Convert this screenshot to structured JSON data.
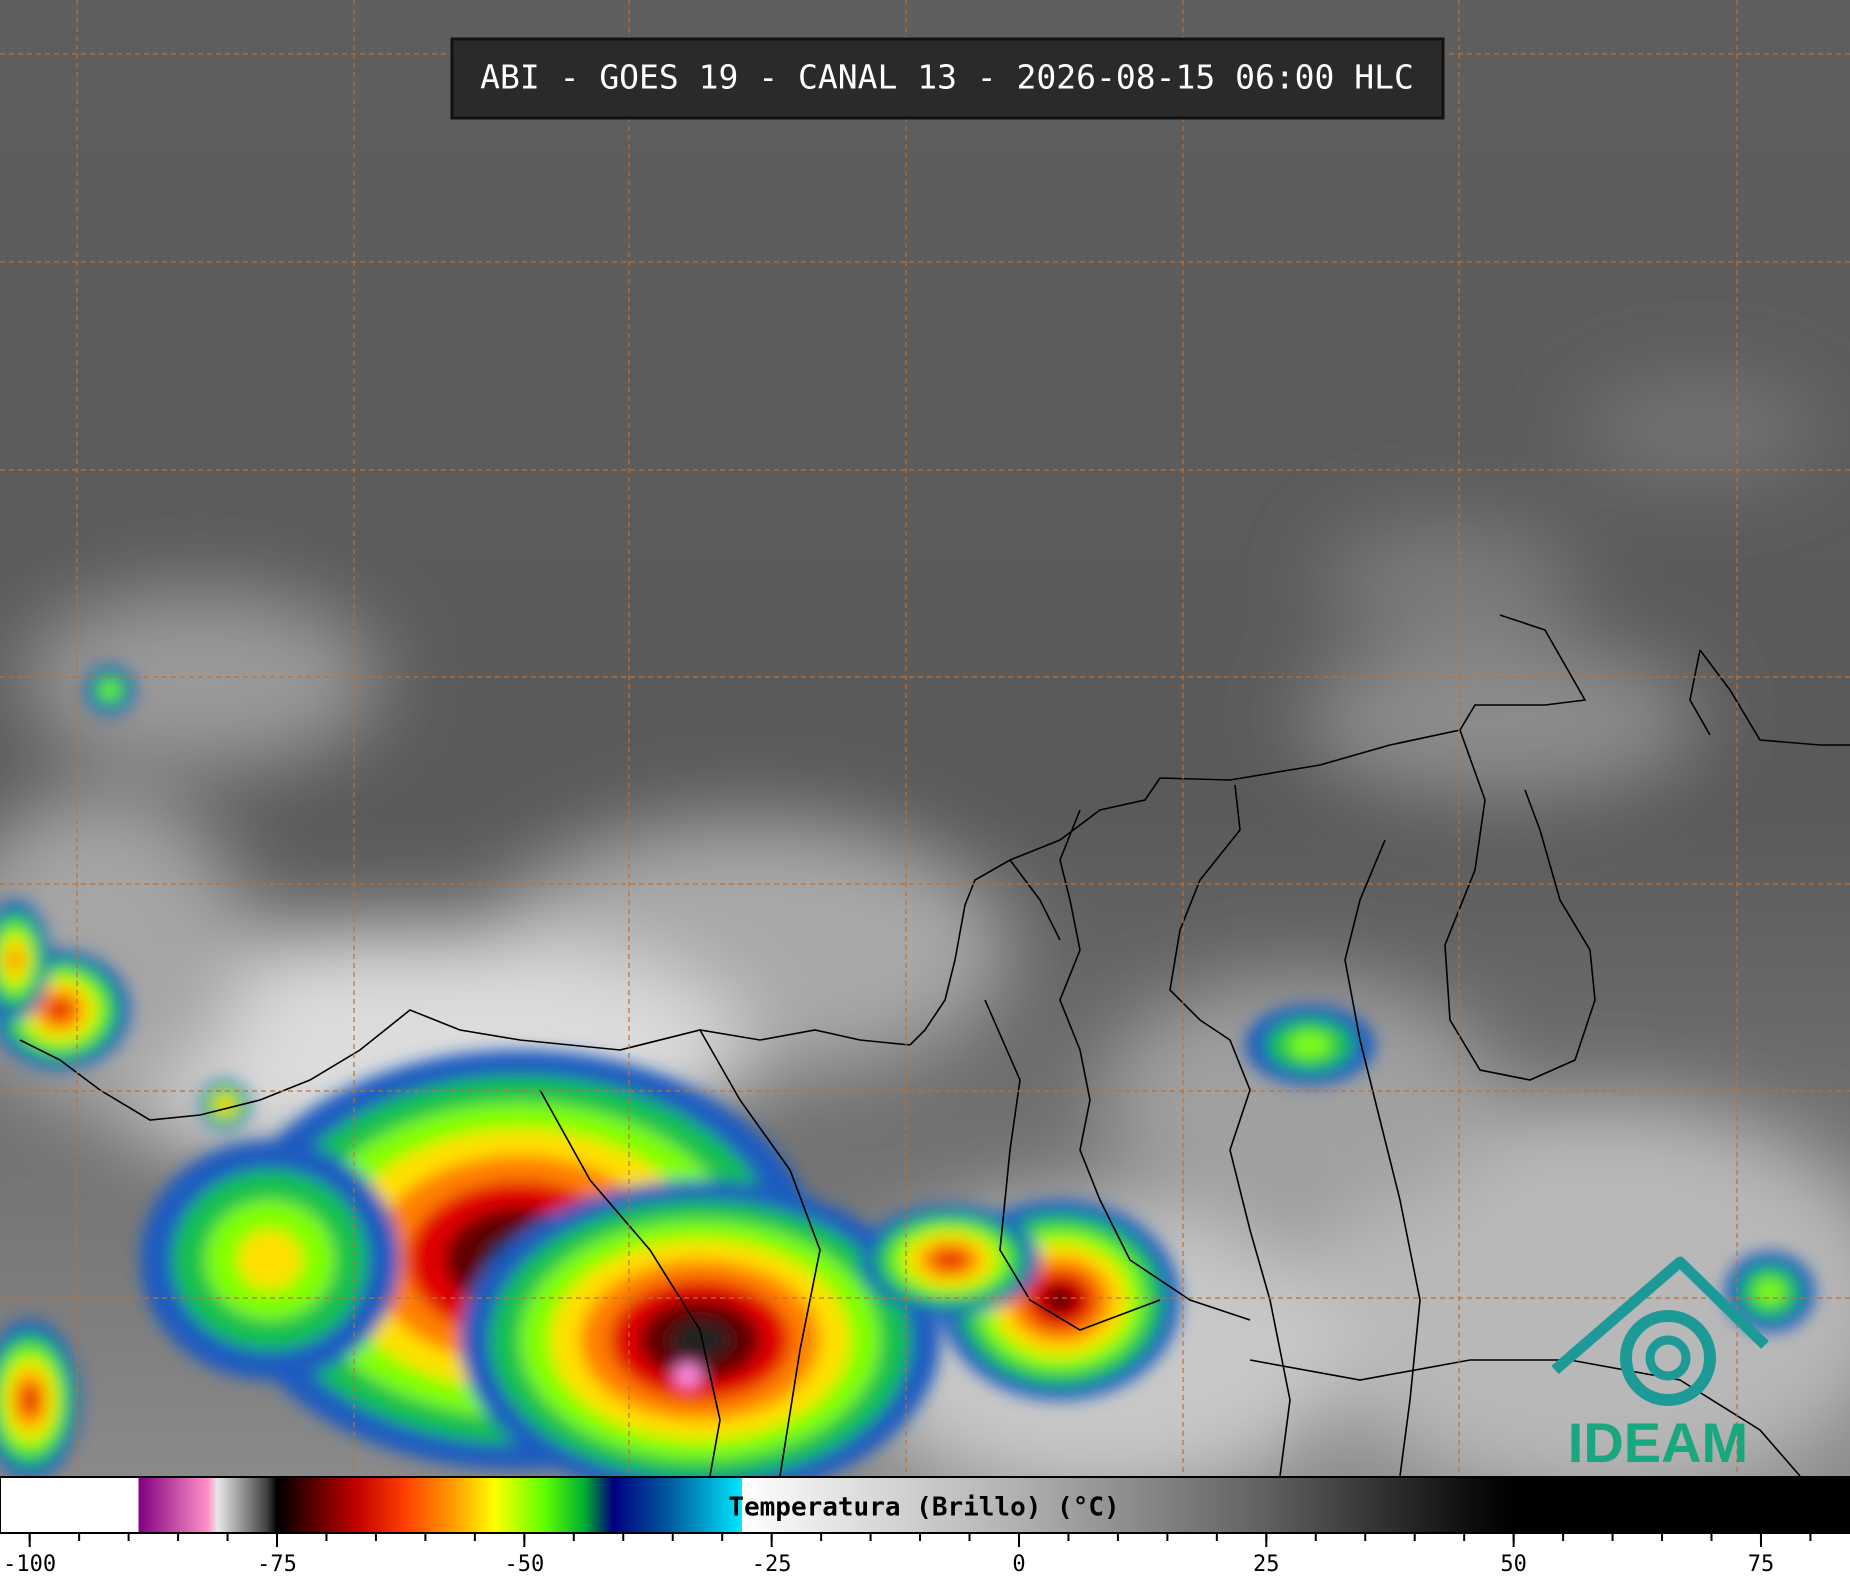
{
  "chart_data": {
    "type": "colorbar",
    "title": "ABI - GOES 19 - CANAL 13 - 2026-08-15 06:00 HLC",
    "colorbar_label": "Temperatura (Brillo) (°C)",
    "logo": "IDEAM",
    "xlim": [
      -103,
      84
    ],
    "xticks": [
      -100,
      -75,
      -50,
      -25,
      0,
      25,
      50,
      75
    ],
    "xminorticks": [
      -100,
      -95,
      -90,
      -85,
      -80,
      -75,
      -70,
      -65,
      -60,
      -55,
      -50,
      -45,
      -40,
      -35,
      -30,
      -25,
      -20,
      -15,
      -10,
      -5,
      0,
      5,
      10,
      15,
      20,
      25,
      30,
      35,
      40,
      45,
      50,
      55,
      60,
      65,
      70,
      75,
      80
    ],
    "color_stops": [
      {
        "value": -103,
        "color": "#ffffff"
      },
      {
        "value": -89,
        "color": "#ffffff"
      },
      {
        "value": -89,
        "color": "#800080"
      },
      {
        "value": -82,
        "color": "#ff90c8"
      },
      {
        "value": -81,
        "color": "#e8e8e8"
      },
      {
        "value": -76,
        "color": "#404040"
      },
      {
        "value": -75,
        "color": "#000000"
      },
      {
        "value": -73,
        "color": "#300000"
      },
      {
        "value": -67,
        "color": "#c00000"
      },
      {
        "value": -62,
        "color": "#ff4000"
      },
      {
        "value": -57,
        "color": "#ffa000"
      },
      {
        "value": -53,
        "color": "#ffff00"
      },
      {
        "value": -48,
        "color": "#60ff00"
      },
      {
        "value": -44,
        "color": "#00b030"
      },
      {
        "value": -41,
        "color": "#000080"
      },
      {
        "value": -35,
        "color": "#0060a0"
      },
      {
        "value": -28,
        "color": "#00e8ff"
      },
      {
        "value": -28,
        "color": "#ffffff"
      },
      {
        "value": -20,
        "color": "#e8e8e8"
      },
      {
        "value": 0,
        "color": "#b0b0b0"
      },
      {
        "value": 25,
        "color": "#606060"
      },
      {
        "value": 45,
        "color": "#101010"
      },
      {
        "value": 50,
        "color": "#000000"
      },
      {
        "value": 84,
        "color": "#000000"
      }
    ]
  }
}
